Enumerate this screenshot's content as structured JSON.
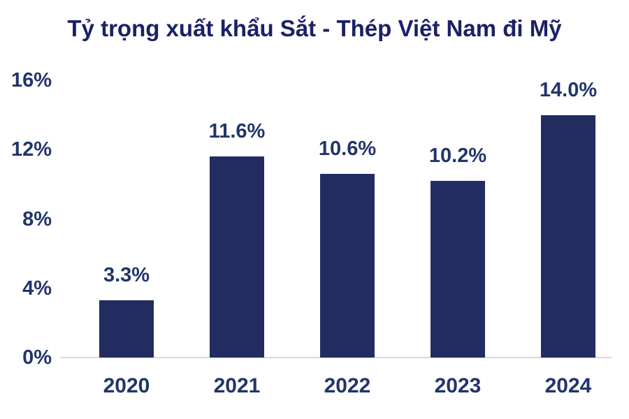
{
  "title": "Tỷ trọng xuất khẩu Sắt - Thép Việt Nam đi Mỹ",
  "colors": {
    "bar": "#232c60",
    "title_text": "#1b2166",
    "label_text": "#21356b",
    "axis_line": "#d9d9d9",
    "background": "#ffffff"
  },
  "chart_data": {
    "type": "bar",
    "title": "Tỷ trọng xuất khẩu Sắt - Thép Việt Nam đi Mỹ",
    "categories": [
      "2020",
      "2021",
      "2022",
      "2023",
      "2024"
    ],
    "values": [
      3.3,
      11.6,
      10.6,
      10.2,
      14.0
    ],
    "value_labels": [
      "3.3%",
      "11.6%",
      "10.6%",
      "10.2%",
      "14.0%"
    ],
    "xlabel": "",
    "ylabel": "",
    "ylim": [
      0,
      16
    ],
    "yticks": [
      0,
      4,
      8,
      12,
      16
    ],
    "ytick_labels": [
      "0%",
      "4%",
      "8%",
      "12%",
      "16%"
    ],
    "grid": false,
    "legend": false
  }
}
